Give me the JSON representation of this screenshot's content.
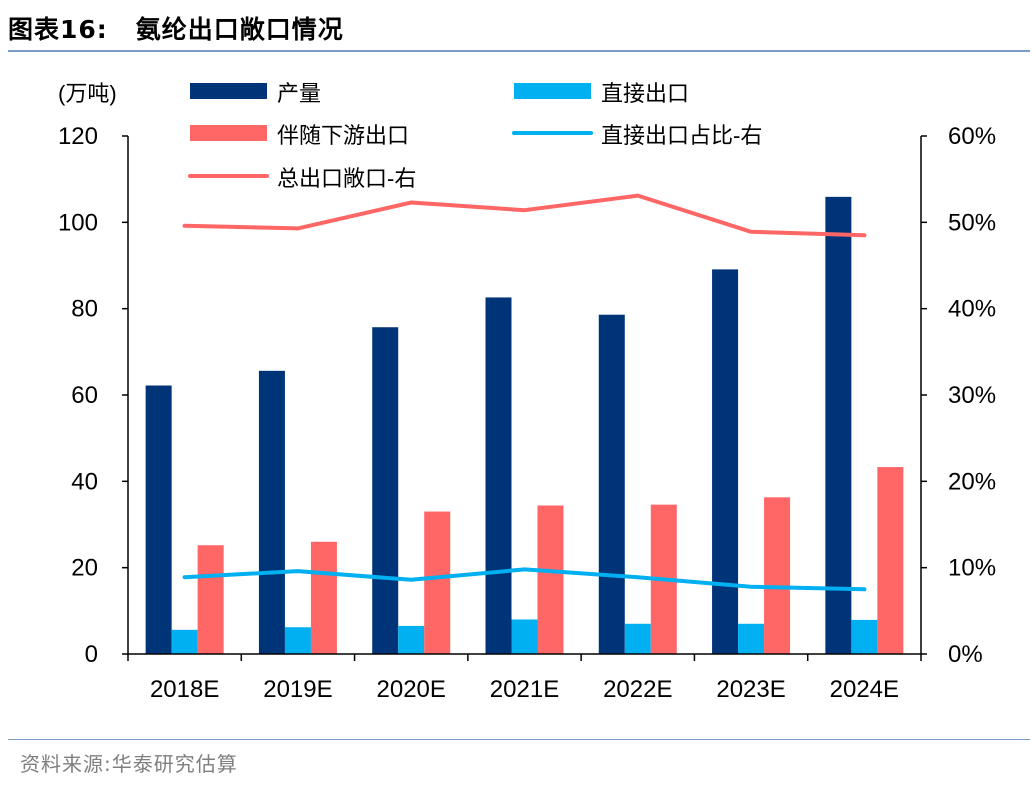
{
  "header": {
    "figure_label": "图表16:",
    "figure_title": "氨纶出口敞口情况"
  },
  "footer": {
    "source": "资料来源:华泰研究估算"
  },
  "chart_data": {
    "type": "bar",
    "categories": [
      "2018E",
      "2019E",
      "2020E",
      "2021E",
      "2022E",
      "2023E",
      "2024E"
    ],
    "unit_label": "(万吨)",
    "ylim_left": [
      0,
      120
    ],
    "yticks_left": [
      "0",
      "20",
      "40",
      "60",
      "80",
      "100",
      "120"
    ],
    "ylim_right": [
      0,
      0.6
    ],
    "yticks_right": [
      "0%",
      "10%",
      "20%",
      "30%",
      "40%",
      "50%",
      "60%"
    ],
    "grid": false,
    "legend_position": "top",
    "series": [
      {
        "name": "产量",
        "kind": "bar",
        "axis": "left",
        "color": "#003478",
        "values": [
          62.2,
          65.6,
          75.7,
          82.6,
          78.6,
          89.1,
          105.9
        ]
      },
      {
        "name": "直接出口",
        "kind": "bar",
        "axis": "left",
        "color": "#00b0f0",
        "values": [
          5.6,
          6.2,
          6.5,
          8.0,
          7.0,
          7.0,
          7.9
        ]
      },
      {
        "name": "伴随下游出口",
        "kind": "bar",
        "axis": "left",
        "color": "#ff6666",
        "values": [
          25.2,
          26.0,
          33.0,
          34.4,
          34.6,
          36.3,
          43.3
        ]
      },
      {
        "name": "直接出口占比-右",
        "kind": "line",
        "axis": "right",
        "color": "#00b0f0",
        "values": [
          0.089,
          0.096,
          0.086,
          0.098,
          0.089,
          0.078,
          0.075
        ]
      },
      {
        "name": "总出口敞口-右",
        "kind": "line",
        "axis": "right",
        "color": "#ff6666",
        "values": [
          0.496,
          0.493,
          0.523,
          0.514,
          0.531,
          0.489,
          0.485
        ]
      }
    ]
  }
}
